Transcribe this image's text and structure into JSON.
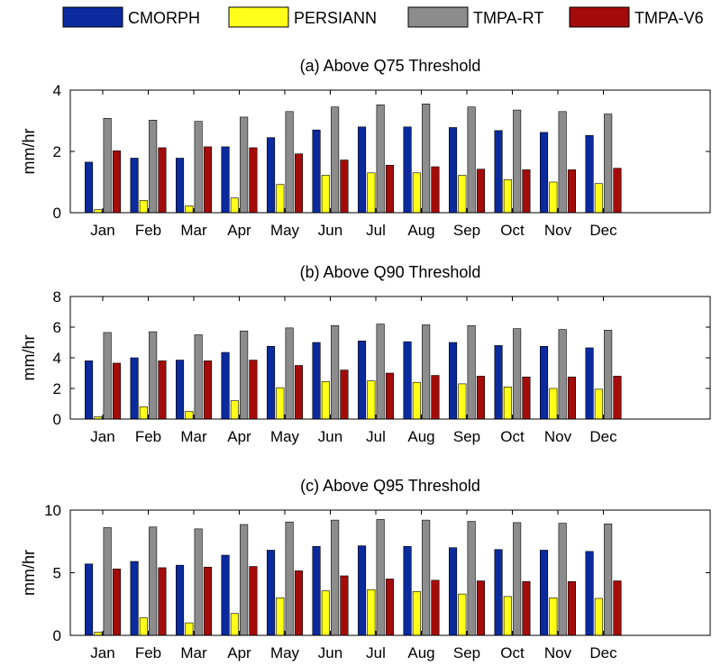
{
  "legend": [
    {
      "name": "CMORPH",
      "color": "#0a2a9e"
    },
    {
      "name": "PERSIANN",
      "color": "#ffff1a"
    },
    {
      "name": "TMPA-RT",
      "color": "#8c8c8c"
    },
    {
      "name": "TMPA-V6",
      "color": "#a40b0b"
    }
  ],
  "chart_data": [
    {
      "type": "bar",
      "title": "(a) Above Q75 Threshold",
      "xlabel": "",
      "ylabel": "mm/hr",
      "ylim": [
        0,
        4
      ],
      "yticks": [
        0,
        2,
        4
      ],
      "categories": [
        "Jan",
        "Feb",
        "Mar",
        "Apr",
        "May",
        "Jun",
        "Jul",
        "Aug",
        "Sep",
        "Oct",
        "Nov",
        "Dec"
      ],
      "series": [
        {
          "name": "CMORPH",
          "values": [
            1.65,
            1.78,
            1.78,
            2.15,
            2.45,
            2.7,
            2.8,
            2.8,
            2.78,
            2.68,
            2.62,
            2.52
          ]
        },
        {
          "name": "PERSIANN",
          "values": [
            0.1,
            0.4,
            0.22,
            0.48,
            0.92,
            1.22,
            1.3,
            1.3,
            1.22,
            1.08,
            1.0,
            0.95
          ]
        },
        {
          "name": "TMPA-RT",
          "values": [
            3.08,
            3.02,
            2.98,
            3.12,
            3.3,
            3.45,
            3.52,
            3.55,
            3.45,
            3.35,
            3.3,
            3.22
          ]
        },
        {
          "name": "TMPA-V6",
          "values": [
            2.02,
            2.12,
            2.15,
            2.12,
            1.92,
            1.72,
            1.55,
            1.5,
            1.42,
            1.4,
            1.4,
            1.45
          ]
        }
      ],
      "grid": false
    },
    {
      "type": "bar",
      "title": "(b) Above Q90 Threshold",
      "xlabel": "",
      "ylabel": "mm/hr",
      "ylim": [
        0,
        8
      ],
      "yticks": [
        0,
        2,
        4,
        6,
        8
      ],
      "categories": [
        "Jan",
        "Feb",
        "Mar",
        "Apr",
        "May",
        "Jun",
        "Jul",
        "Aug",
        "Sep",
        "Oct",
        "Nov",
        "Dec"
      ],
      "series": [
        {
          "name": "CMORPH",
          "values": [
            3.8,
            4.0,
            3.85,
            4.35,
            4.75,
            5.0,
            5.1,
            5.05,
            5.0,
            4.8,
            4.75,
            4.65
          ]
        },
        {
          "name": "PERSIANN",
          "values": [
            0.15,
            0.8,
            0.5,
            1.2,
            2.05,
            2.45,
            2.5,
            2.4,
            2.3,
            2.1,
            2.0,
            1.95
          ]
        },
        {
          "name": "TMPA-RT",
          "values": [
            5.65,
            5.7,
            5.5,
            5.75,
            5.95,
            6.1,
            6.2,
            6.15,
            6.1,
            5.9,
            5.85,
            5.8
          ]
        },
        {
          "name": "TMPA-V6",
          "values": [
            3.65,
            3.8,
            3.8,
            3.85,
            3.5,
            3.2,
            3.0,
            2.85,
            2.8,
            2.75,
            2.75,
            2.8
          ]
        }
      ],
      "grid": false
    },
    {
      "type": "bar",
      "title": "(c) Above Q95 Threshold",
      "xlabel": "",
      "ylabel": "mm/hr",
      "ylim": [
        0,
        10
      ],
      "yticks": [
        0,
        5,
        10
      ],
      "categories": [
        "Jan",
        "Feb",
        "Mar",
        "Apr",
        "May",
        "Jun",
        "Jul",
        "Aug",
        "Sep",
        "Oct",
        "Nov",
        "Dec"
      ],
      "series": [
        {
          "name": "CMORPH",
          "values": [
            5.7,
            5.9,
            5.6,
            6.4,
            6.8,
            7.1,
            7.15,
            7.1,
            7.0,
            6.85,
            6.8,
            6.7
          ]
        },
        {
          "name": "PERSIANN",
          "values": [
            0.25,
            1.4,
            1.0,
            1.75,
            3.0,
            3.55,
            3.65,
            3.5,
            3.3,
            3.1,
            3.0,
            2.95
          ]
        },
        {
          "name": "TMPA-RT",
          "values": [
            8.6,
            8.65,
            8.5,
            8.85,
            9.05,
            9.2,
            9.25,
            9.2,
            9.1,
            9.0,
            8.95,
            8.9
          ]
        },
        {
          "name": "TMPA-V6",
          "values": [
            5.3,
            5.4,
            5.45,
            5.5,
            5.15,
            4.75,
            4.5,
            4.4,
            4.35,
            4.3,
            4.3,
            4.35
          ]
        }
      ],
      "grid": false
    }
  ]
}
